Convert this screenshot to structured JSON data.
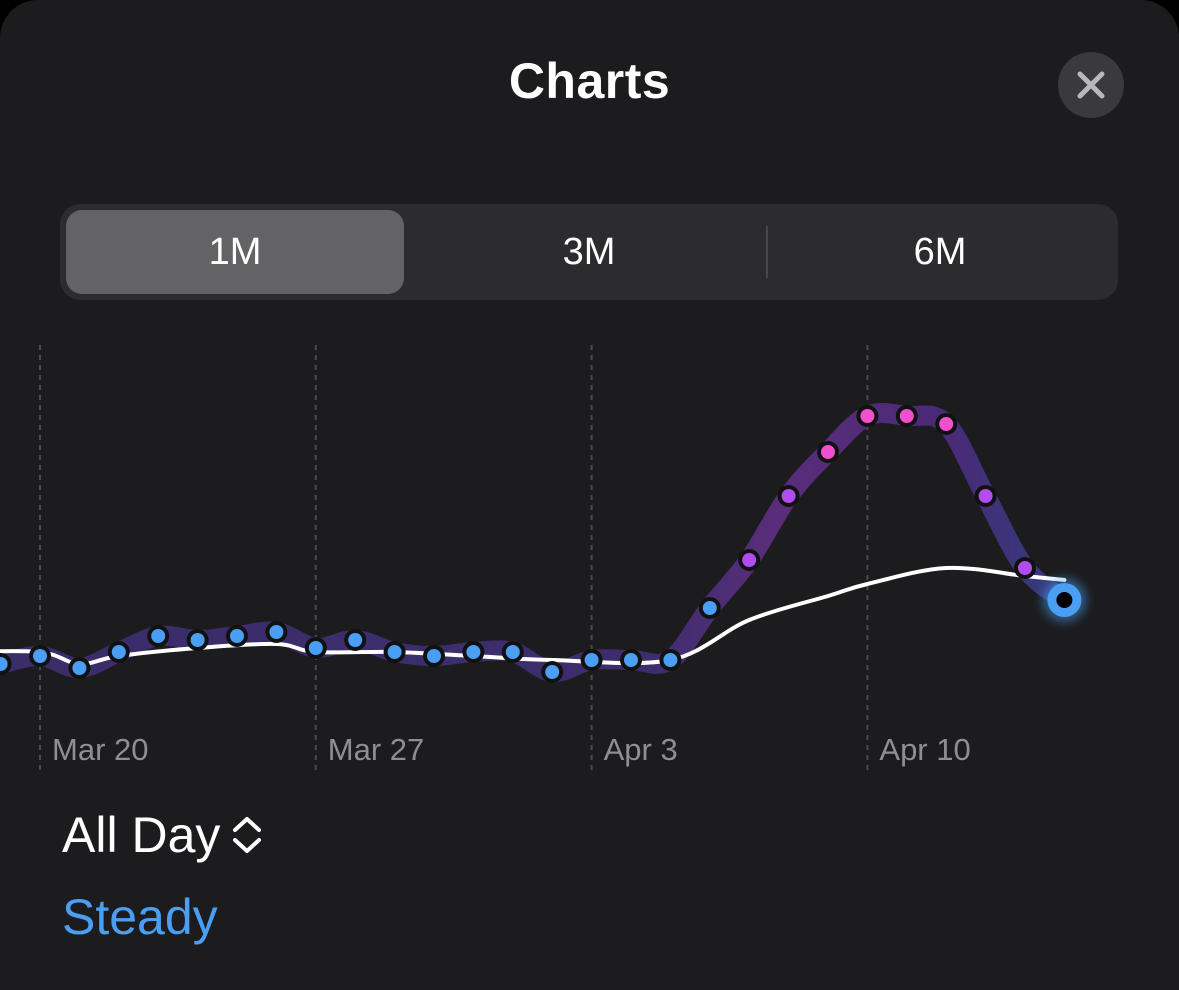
{
  "header": {
    "title": "Charts",
    "close_icon": "close-icon"
  },
  "segments": [
    {
      "label": "1M",
      "selected": true
    },
    {
      "label": "3M",
      "selected": false
    },
    {
      "label": "6M",
      "selected": false
    }
  ],
  "chart_data": {
    "type": "line",
    "x_tick_labels": [
      "Mar 20",
      "Mar 27",
      "Apr 3",
      "Apr 10"
    ],
    "grid": "vertical dashed lines at tick dates",
    "colors": {
      "low": "#4a9ff5",
      "mid": "#b04cf0",
      "high": "#f24fcf",
      "baseline": "#ffffff"
    },
    "series": [
      {
        "style": "dotted-points",
        "points": [
          {
            "x": "Mar 19",
            "y": 0.24
          },
          {
            "x": "Mar 20",
            "y": 0.26
          },
          {
            "x": "Mar 21",
            "y": 0.23
          },
          {
            "x": "Mar 22",
            "y": 0.27
          },
          {
            "x": "Mar 23",
            "y": 0.31
          },
          {
            "x": "Mar 24",
            "y": 0.3
          },
          {
            "x": "Mar 25",
            "y": 0.31
          },
          {
            "x": "Mar 26",
            "y": 0.32
          },
          {
            "x": "Mar 27",
            "y": 0.28
          },
          {
            "x": "Mar 28",
            "y": 0.3
          },
          {
            "x": "Mar 29",
            "y": 0.27
          },
          {
            "x": "Mar 30",
            "y": 0.26
          },
          {
            "x": "Mar 31",
            "y": 0.27
          },
          {
            "x": "Apr 1",
            "y": 0.27
          },
          {
            "x": "Apr 2",
            "y": 0.22
          },
          {
            "x": "Apr 3",
            "y": 0.25
          },
          {
            "x": "Apr 4",
            "y": 0.25
          },
          {
            "x": "Apr 5",
            "y": 0.25
          },
          {
            "x": "Apr 6",
            "y": 0.38
          },
          {
            "x": "Apr 7",
            "y": 0.5
          },
          {
            "x": "Apr 8",
            "y": 0.66
          },
          {
            "x": "Apr 9",
            "y": 0.77
          },
          {
            "x": "Apr 10",
            "y": 0.86
          },
          {
            "x": "Apr 11",
            "y": 0.86
          },
          {
            "x": "Apr 12",
            "y": 0.84
          },
          {
            "x": "Apr 13",
            "y": 0.66
          },
          {
            "x": "Apr 14",
            "y": 0.48
          },
          {
            "x": "Apr 15",
            "y": 0.4
          }
        ]
      },
      {
        "style": "smooth-baseline",
        "points": [
          {
            "x": "Mar 18",
            "y": 0.27
          },
          {
            "x": "Mar 20",
            "y": 0.27
          },
          {
            "x": "Mar 21",
            "y": 0.24
          },
          {
            "x": "Mar 22",
            "y": 0.26
          },
          {
            "x": "Mar 24",
            "y": 0.28
          },
          {
            "x": "Mar 26",
            "y": 0.29
          },
          {
            "x": "Mar 27",
            "y": 0.27
          },
          {
            "x": "Mar 29",
            "y": 0.27
          },
          {
            "x": "Mar 31",
            "y": 0.26
          },
          {
            "x": "Apr 2",
            "y": 0.25
          },
          {
            "x": "Apr 5",
            "y": 0.25
          },
          {
            "x": "Apr 7",
            "y": 0.35
          },
          {
            "x": "Apr 9",
            "y": 0.41
          },
          {
            "x": "Apr 10",
            "y": 0.44
          },
          {
            "x": "Apr 12",
            "y": 0.48
          },
          {
            "x": "Apr 14",
            "y": 0.46
          },
          {
            "x": "Apr 15",
            "y": 0.45
          }
        ]
      }
    ]
  },
  "picker": {
    "label": "All Day",
    "icon": "chevron-up-down-icon"
  },
  "status": {
    "text": "Steady",
    "color": "#4a9ff5"
  }
}
